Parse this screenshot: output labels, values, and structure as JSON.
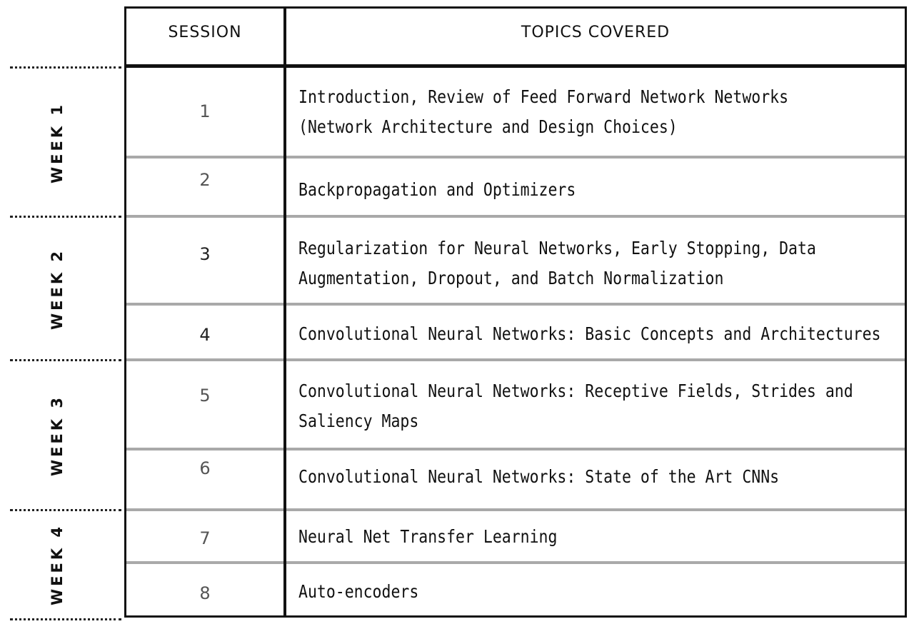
{
  "table": {
    "header": {
      "session": "SESSION",
      "topics": "TOPICS COVERED"
    },
    "weeks": [
      {
        "label": "WEEK 1"
      },
      {
        "label": "WEEK 2"
      },
      {
        "label": "WEEK 3"
      },
      {
        "label": "WEEK 4"
      }
    ],
    "sessions": [
      {
        "number": "1",
        "topic_line1": "Introduction, Review of Feed Forward Network Networks",
        "topic_line2": "(Network Architecture and Design Choices)"
      },
      {
        "number": "2",
        "topic_line1": "Backpropagation and Optimizers"
      },
      {
        "number": "3",
        "topic_line1": "Regularization for Neural Networks, Early Stopping, Data",
        "topic_line2": "Augmentation, Dropout, and Batch Normalization"
      },
      {
        "number": "4",
        "topic_line1": "Convolutional Neural Networks: Basic Concepts and Architectures"
      },
      {
        "number": "5",
        "topic_line1": "Convolutional Neural Networks: Receptive Fields, Strides and",
        "topic_line2": "Saliency Maps"
      },
      {
        "number": "6",
        "topic_line1": "Convolutional Neural Networks: State of the Art CNNs"
      },
      {
        "number": "7",
        "topic_line1": "Neural Net Transfer Learning"
      },
      {
        "number": "8",
        "topic_line1": "Auto-encoders"
      }
    ]
  },
  "colors": {
    "week1": "#eef8d4",
    "week2": "#fbe6df",
    "week3": "#e9f6fc",
    "week4": "#f2f2f2",
    "border": "#111111",
    "row_divider": "#a9a9a9"
  }
}
